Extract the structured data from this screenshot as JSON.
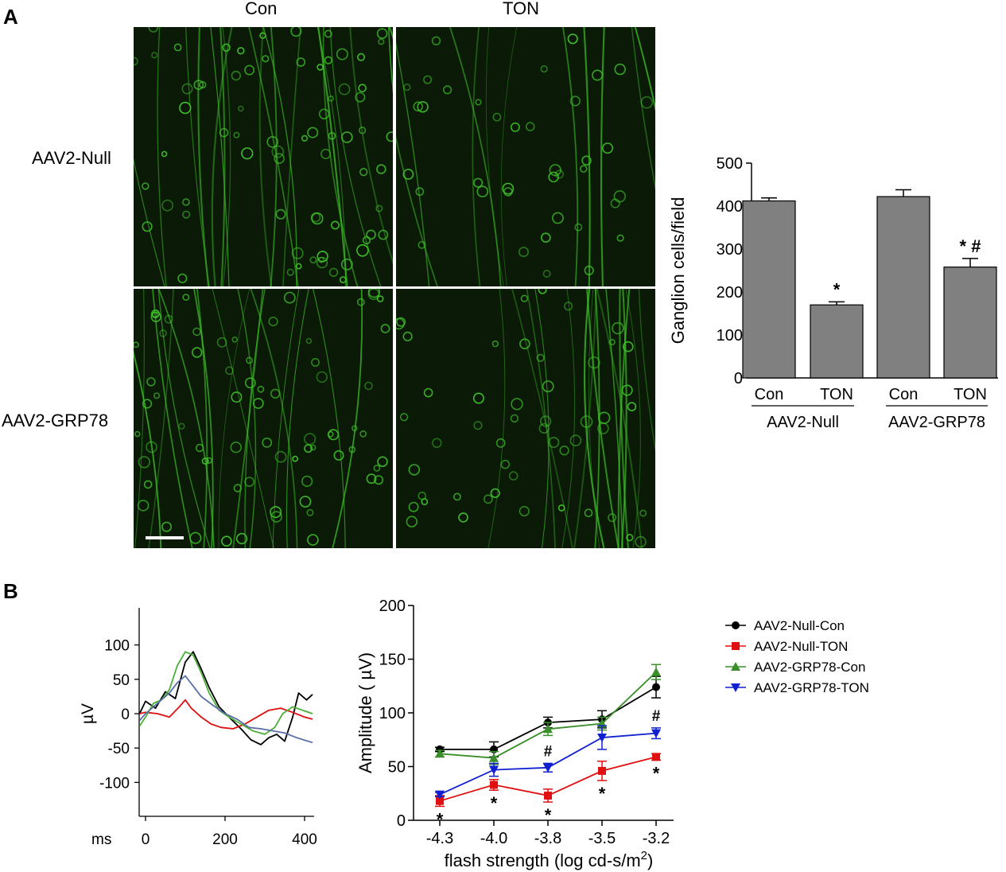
{
  "panel_a": {
    "label": "A",
    "col_headers": [
      "Con",
      "TON"
    ],
    "row_headers": [
      "AAV2-Null",
      "AAV2-GRP78"
    ],
    "micrographs": [
      {
        "row": "AAV2-Null",
        "col": "Con",
        "density": "high"
      },
      {
        "row": "AAV2-Null",
        "col": "TON",
        "density": "low"
      },
      {
        "row": "AAV2-GRP78",
        "col": "Con",
        "density": "high"
      },
      {
        "row": "AAV2-GRP78",
        "col": "TON",
        "density": "medium"
      }
    ]
  },
  "panel_b": {
    "label": "B"
  },
  "colors": {
    "fluorescence": "#3fbf2a",
    "bar_fill": "#808080",
    "null_con": "#000000",
    "null_ton": "#e01010",
    "grp_con": "#3a8f2a",
    "grp_ton": "#1020d0"
  },
  "chart_data": [
    {
      "type": "bar",
      "title": "",
      "ylabel": "Ganglion cells/field",
      "xlabel": "",
      "ylim": [
        0,
        500
      ],
      "yticks": [
        0,
        100,
        200,
        300,
        400,
        500
      ],
      "categories": [
        "Con",
        "TON",
        "Con",
        "TON"
      ],
      "groups": [
        {
          "name": "AAV2-Null",
          "categories": [
            "Con",
            "TON"
          ]
        },
        {
          "name": "AAV2-GRP78",
          "categories": [
            "Con",
            "TON"
          ]
        }
      ],
      "values": [
        412,
        170,
        422,
        258
      ],
      "errors": [
        7,
        7,
        16,
        20
      ],
      "annotations": [
        "",
        "*",
        "",
        "* #"
      ]
    },
    {
      "type": "line",
      "title": "",
      "ylabel": "µV",
      "xlabel": "ms",
      "xlim": [
        -20,
        420
      ],
      "ylim": [
        -150,
        150
      ],
      "xticks": [
        0,
        200,
        400
      ],
      "yticks": [
        100,
        50,
        0,
        -50,
        -100
      ],
      "series": [
        {
          "name": "AAV2-Null-Con",
          "color": "#000000",
          "x": [
            -15,
            0,
            25,
            50,
            75,
            100,
            120,
            140,
            160,
            185,
            210,
            240,
            265,
            290,
            310,
            330,
            350,
            370,
            385,
            405,
            420
          ],
          "y": [
            0,
            18,
            8,
            32,
            22,
            75,
            90,
            65,
            38,
            10,
            -5,
            -22,
            -38,
            -45,
            -35,
            -30,
            -40,
            -5,
            30,
            20,
            28
          ]
        },
        {
          "name": "AAV2-Null-TON",
          "color": "#e01010",
          "x": [
            -15,
            0,
            30,
            60,
            85,
            100,
            115,
            140,
            165,
            190,
            220,
            250,
            280,
            310,
            340,
            370,
            400,
            420
          ],
          "y": [
            0,
            2,
            0,
            -5,
            10,
            20,
            8,
            -5,
            -15,
            -20,
            -22,
            -15,
            -5,
            5,
            8,
            2,
            -5,
            -8
          ]
        },
        {
          "name": "AAV2-GRP78-Con",
          "color": "#4caf3a",
          "x": [
            -15,
            0,
            20,
            40,
            60,
            80,
            100,
            120,
            140,
            160,
            185,
            210,
            240,
            270,
            300,
            325,
            345,
            370,
            395,
            420
          ],
          "y": [
            -18,
            -5,
            15,
            20,
            35,
            70,
            90,
            85,
            60,
            30,
            5,
            -5,
            -15,
            -25,
            -30,
            -20,
            0,
            10,
            5,
            0
          ]
        },
        {
          "name": "AAV2-GRP78-TON",
          "color": "#5a6fa8",
          "x": [
            -15,
            0,
            20,
            40,
            60,
            80,
            100,
            120,
            140,
            170,
            200,
            230,
            260,
            290,
            320,
            350,
            380,
            420
          ],
          "y": [
            -10,
            0,
            10,
            20,
            30,
            45,
            55,
            40,
            25,
            12,
            0,
            -8,
            -20,
            -22,
            -25,
            -28,
            -35,
            -42
          ]
        }
      ]
    },
    {
      "type": "line",
      "title": "",
      "ylabel": "Amplitude ( µV)",
      "xlabel_main": "flash strength (log cd-s/m",
      "xlabel_sup": "2",
      "xlabel_end": ")",
      "categories": [
        "-4.3",
        "-4.0",
        "-3.8",
        "-3.5",
        "-3.2"
      ],
      "ylim": [
        0,
        200
      ],
      "yticks": [
        0,
        50,
        100,
        150,
        200
      ],
      "legend": "right",
      "series": [
        {
          "name": "AAV2-Null-Con",
          "marker": "circle",
          "color": "#000000",
          "values": [
            66,
            66,
            91,
            94,
            124
          ],
          "errors": [
            2,
            7,
            5,
            8,
            10
          ]
        },
        {
          "name": "AAV2-Null-TON",
          "marker": "square",
          "color": "#e01010",
          "values": [
            18,
            33,
            23,
            46,
            59
          ],
          "errors": [
            5,
            5,
            6,
            9,
            3
          ]
        },
        {
          "name": "AAV2-GRP78-Con",
          "marker": "triangle-up",
          "color": "#3a8f2a",
          "values": [
            62,
            58,
            85,
            90,
            138
          ],
          "errors": [
            3,
            6,
            6,
            6,
            7
          ]
        },
        {
          "name": "AAV2-GRP78-TON",
          "marker": "triangle-down",
          "color": "#1020d0",
          "values": [
            24,
            47,
            49,
            77,
            81
          ],
          "errors": [
            2,
            6,
            4,
            11,
            5
          ]
        }
      ],
      "star_annotations": [
        "*",
        "*",
        "*",
        "*",
        "*"
      ],
      "hash_annotations": [
        "",
        "",
        "#",
        "",
        "#"
      ]
    }
  ]
}
